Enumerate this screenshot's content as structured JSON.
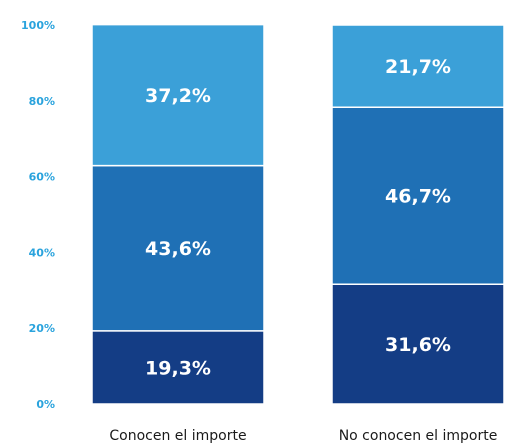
{
  "chart_data": {
    "type": "bar",
    "stacked": true,
    "categories": [
      "Conocen el importe",
      "No conocen el importe"
    ],
    "series": [
      {
        "values": [
          19.3,
          31.6
        ],
        "labels": [
          "19,3%",
          "31,6%"
        ],
        "color": "#143d85"
      },
      {
        "values": [
          43.6,
          46.7
        ],
        "labels": [
          "43,6%",
          "46,7%"
        ],
        "color": "#1f70b5"
      },
      {
        "values": [
          37.2,
          21.7
        ],
        "labels": [
          "37,2%",
          "21,7%"
        ],
        "color": "#3ba0d8"
      }
    ],
    "yticks": [
      "0%",
      "20%",
      "40%",
      "60%",
      "80%",
      "100%"
    ],
    "ytick_color": "#2aa3dd",
    "ylim": [
      0,
      100
    ],
    "grid": false,
    "legend": "none"
  }
}
